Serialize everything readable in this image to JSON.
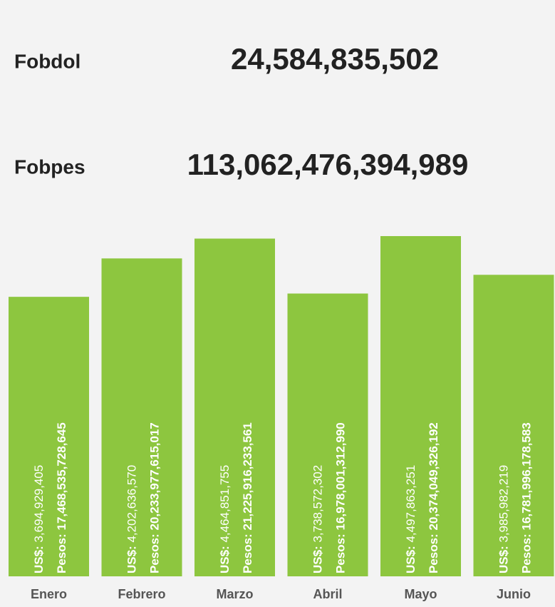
{
  "kpis": [
    {
      "label": "Fobdol",
      "value": "24,584,835,502"
    },
    {
      "label": "Fobpes",
      "value": "113,062,476,394,989"
    }
  ],
  "chart_data": {
    "type": "bar",
    "categories": [
      "Enero",
      "Febrero",
      "Marzo",
      "Abril",
      "Mayo",
      "Junio"
    ],
    "series": [
      {
        "name": "US$:",
        "color": "#8dc63f",
        "values": [
          3694929405,
          4202636570,
          4464851755,
          3738572302,
          4497863251,
          3985982219
        ],
        "value_labels": [
          "3,694,929,405",
          "4,202,636,570",
          "4,464,851,755",
          "3,738,572,302",
          "4,497,863,251",
          "3,985,982,219"
        ]
      },
      {
        "name": "Pesos:",
        "values": [
          17468535728645,
          20233977615017,
          21225916233561,
          16978001312990,
          20374049326192,
          16781996178583
        ],
        "value_labels": [
          "17,468,535,728,645",
          "20,233,977,615,017",
          "21,225,916,233,561",
          "16,978,001,312,990",
          "20,374,049,326,192",
          "16,781,996,178,583"
        ]
      }
    ]
  }
}
